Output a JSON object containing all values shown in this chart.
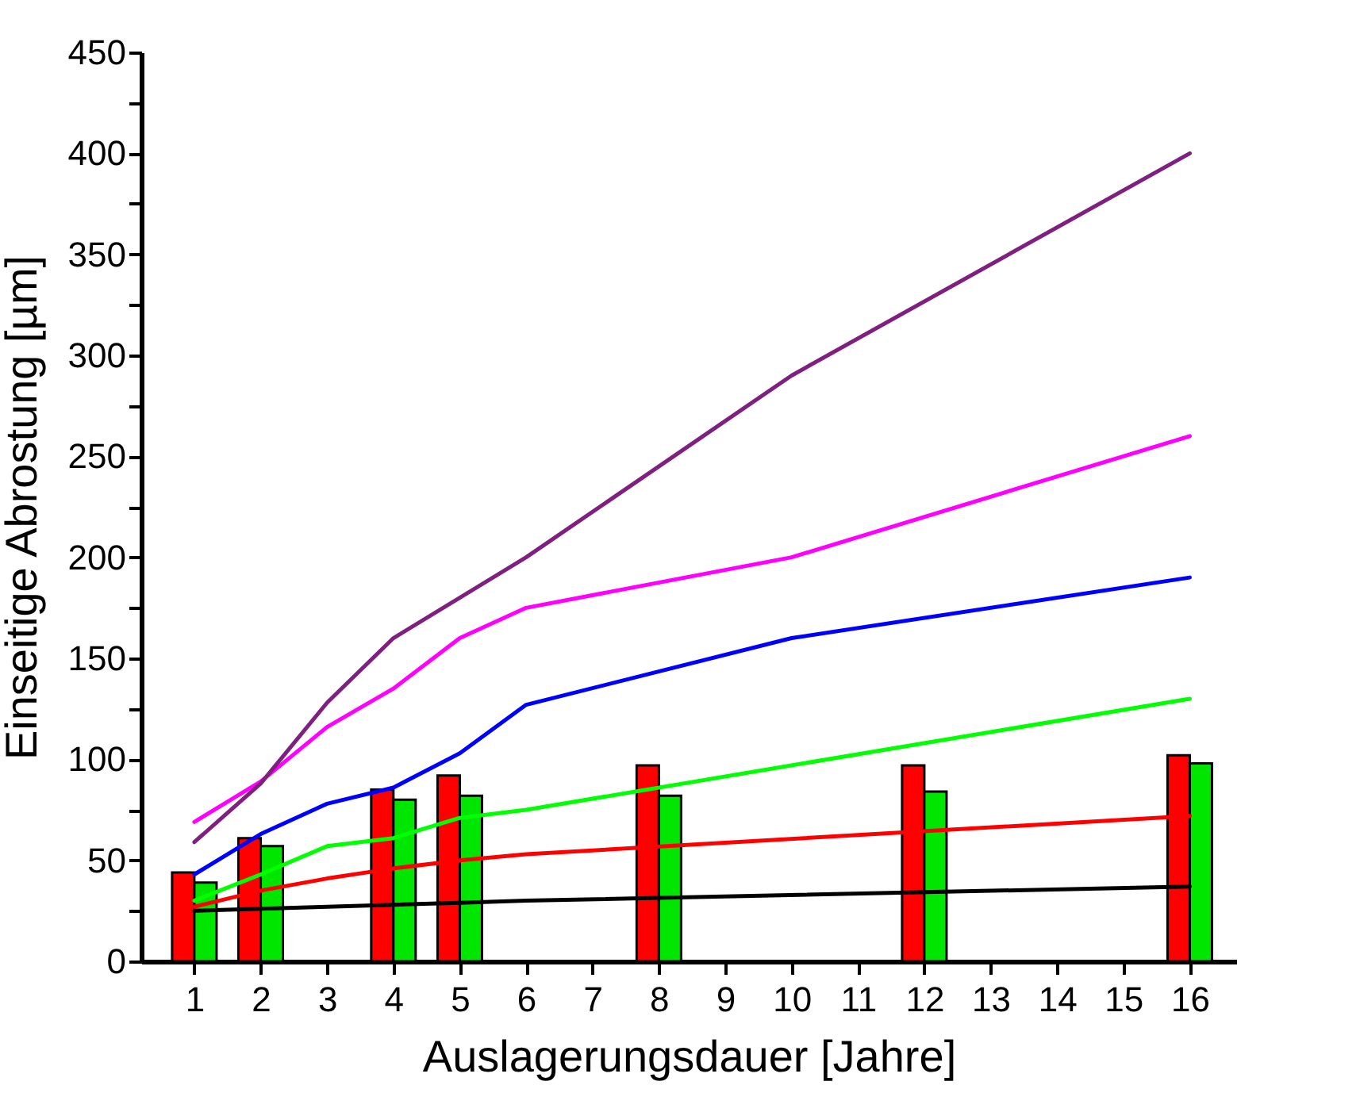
{
  "chart_data": {
    "type": "line",
    "xlabel": "Auslagerungsdauer [Jahre]",
    "ylabel": "Einseitige Abrostung [µm]",
    "xlim": [
      0.2,
      16.7
    ],
    "xticks": [
      1,
      2,
      3,
      4,
      5,
      6,
      7,
      8,
      9,
      10,
      11,
      12,
      13,
      14,
      15,
      16
    ],
    "ylim": [
      0,
      450
    ],
    "yticks": [
      0,
      {
        "value": 25,
        "label": null
      },
      50,
      {
        "value": 75,
        "label": null
      },
      100,
      {
        "value": 125,
        "label": null
      },
      150,
      {
        "value": 175,
        "label": null
      },
      200,
      {
        "value": 225,
        "label": null
      },
      250,
      {
        "value": 275,
        "label": null
      },
      300,
      {
        "value": 325,
        "label": null
      },
      350,
      {
        "value": 375,
        "label": null
      },
      400,
      {
        "value": 425,
        "label": null
      },
      450
    ],
    "grid": false,
    "series": [
      {
        "type": "bar",
        "color": "#ff0000",
        "x": [
          1,
          2,
          4,
          5,
          8,
          12,
          16
        ],
        "values": [
          44,
          61,
          85,
          92,
          97,
          97,
          102
        ]
      },
      {
        "type": "bar",
        "color": "#00e600",
        "x": [
          1,
          2,
          4,
          5,
          8,
          12,
          16
        ],
        "values": [
          39,
          57,
          80,
          82,
          82,
          84,
          98
        ]
      },
      {
        "color": "#000000",
        "x": [
          1,
          2,
          3,
          4,
          5,
          6,
          16
        ],
        "values": [
          25,
          26,
          27,
          28,
          29,
          30,
          37
        ]
      },
      {
        "color": "#ff0000",
        "x": [
          1,
          2,
          3,
          4,
          5,
          6,
          16
        ],
        "values": [
          27,
          35,
          41,
          46,
          50,
          53,
          72
        ]
      },
      {
        "color": "#00ff00",
        "x": [
          1,
          2,
          3,
          4,
          5,
          6,
          16
        ],
        "values": [
          30,
          43,
          57,
          61,
          71,
          75,
          130
        ]
      },
      {
        "color": "#0000ff",
        "x": [
          1,
          2,
          3,
          4,
          5,
          6,
          10,
          16
        ],
        "values": [
          43,
          63,
          78,
          86,
          103,
          127,
          160,
          190
        ]
      },
      {
        "color": "#ff00ff",
        "x": [
          1,
          2,
          3,
          4,
          5,
          6,
          10,
          16
        ],
        "values": [
          69,
          89,
          116,
          135,
          160,
          175,
          200,
          260
        ]
      },
      {
        "color": "#7f1f7f",
        "x": [
          1,
          2,
          3,
          4,
          5,
          6,
          10,
          16
        ],
        "values": [
          59,
          88,
          128,
          160,
          180,
          200,
          290,
          400
        ]
      }
    ]
  }
}
